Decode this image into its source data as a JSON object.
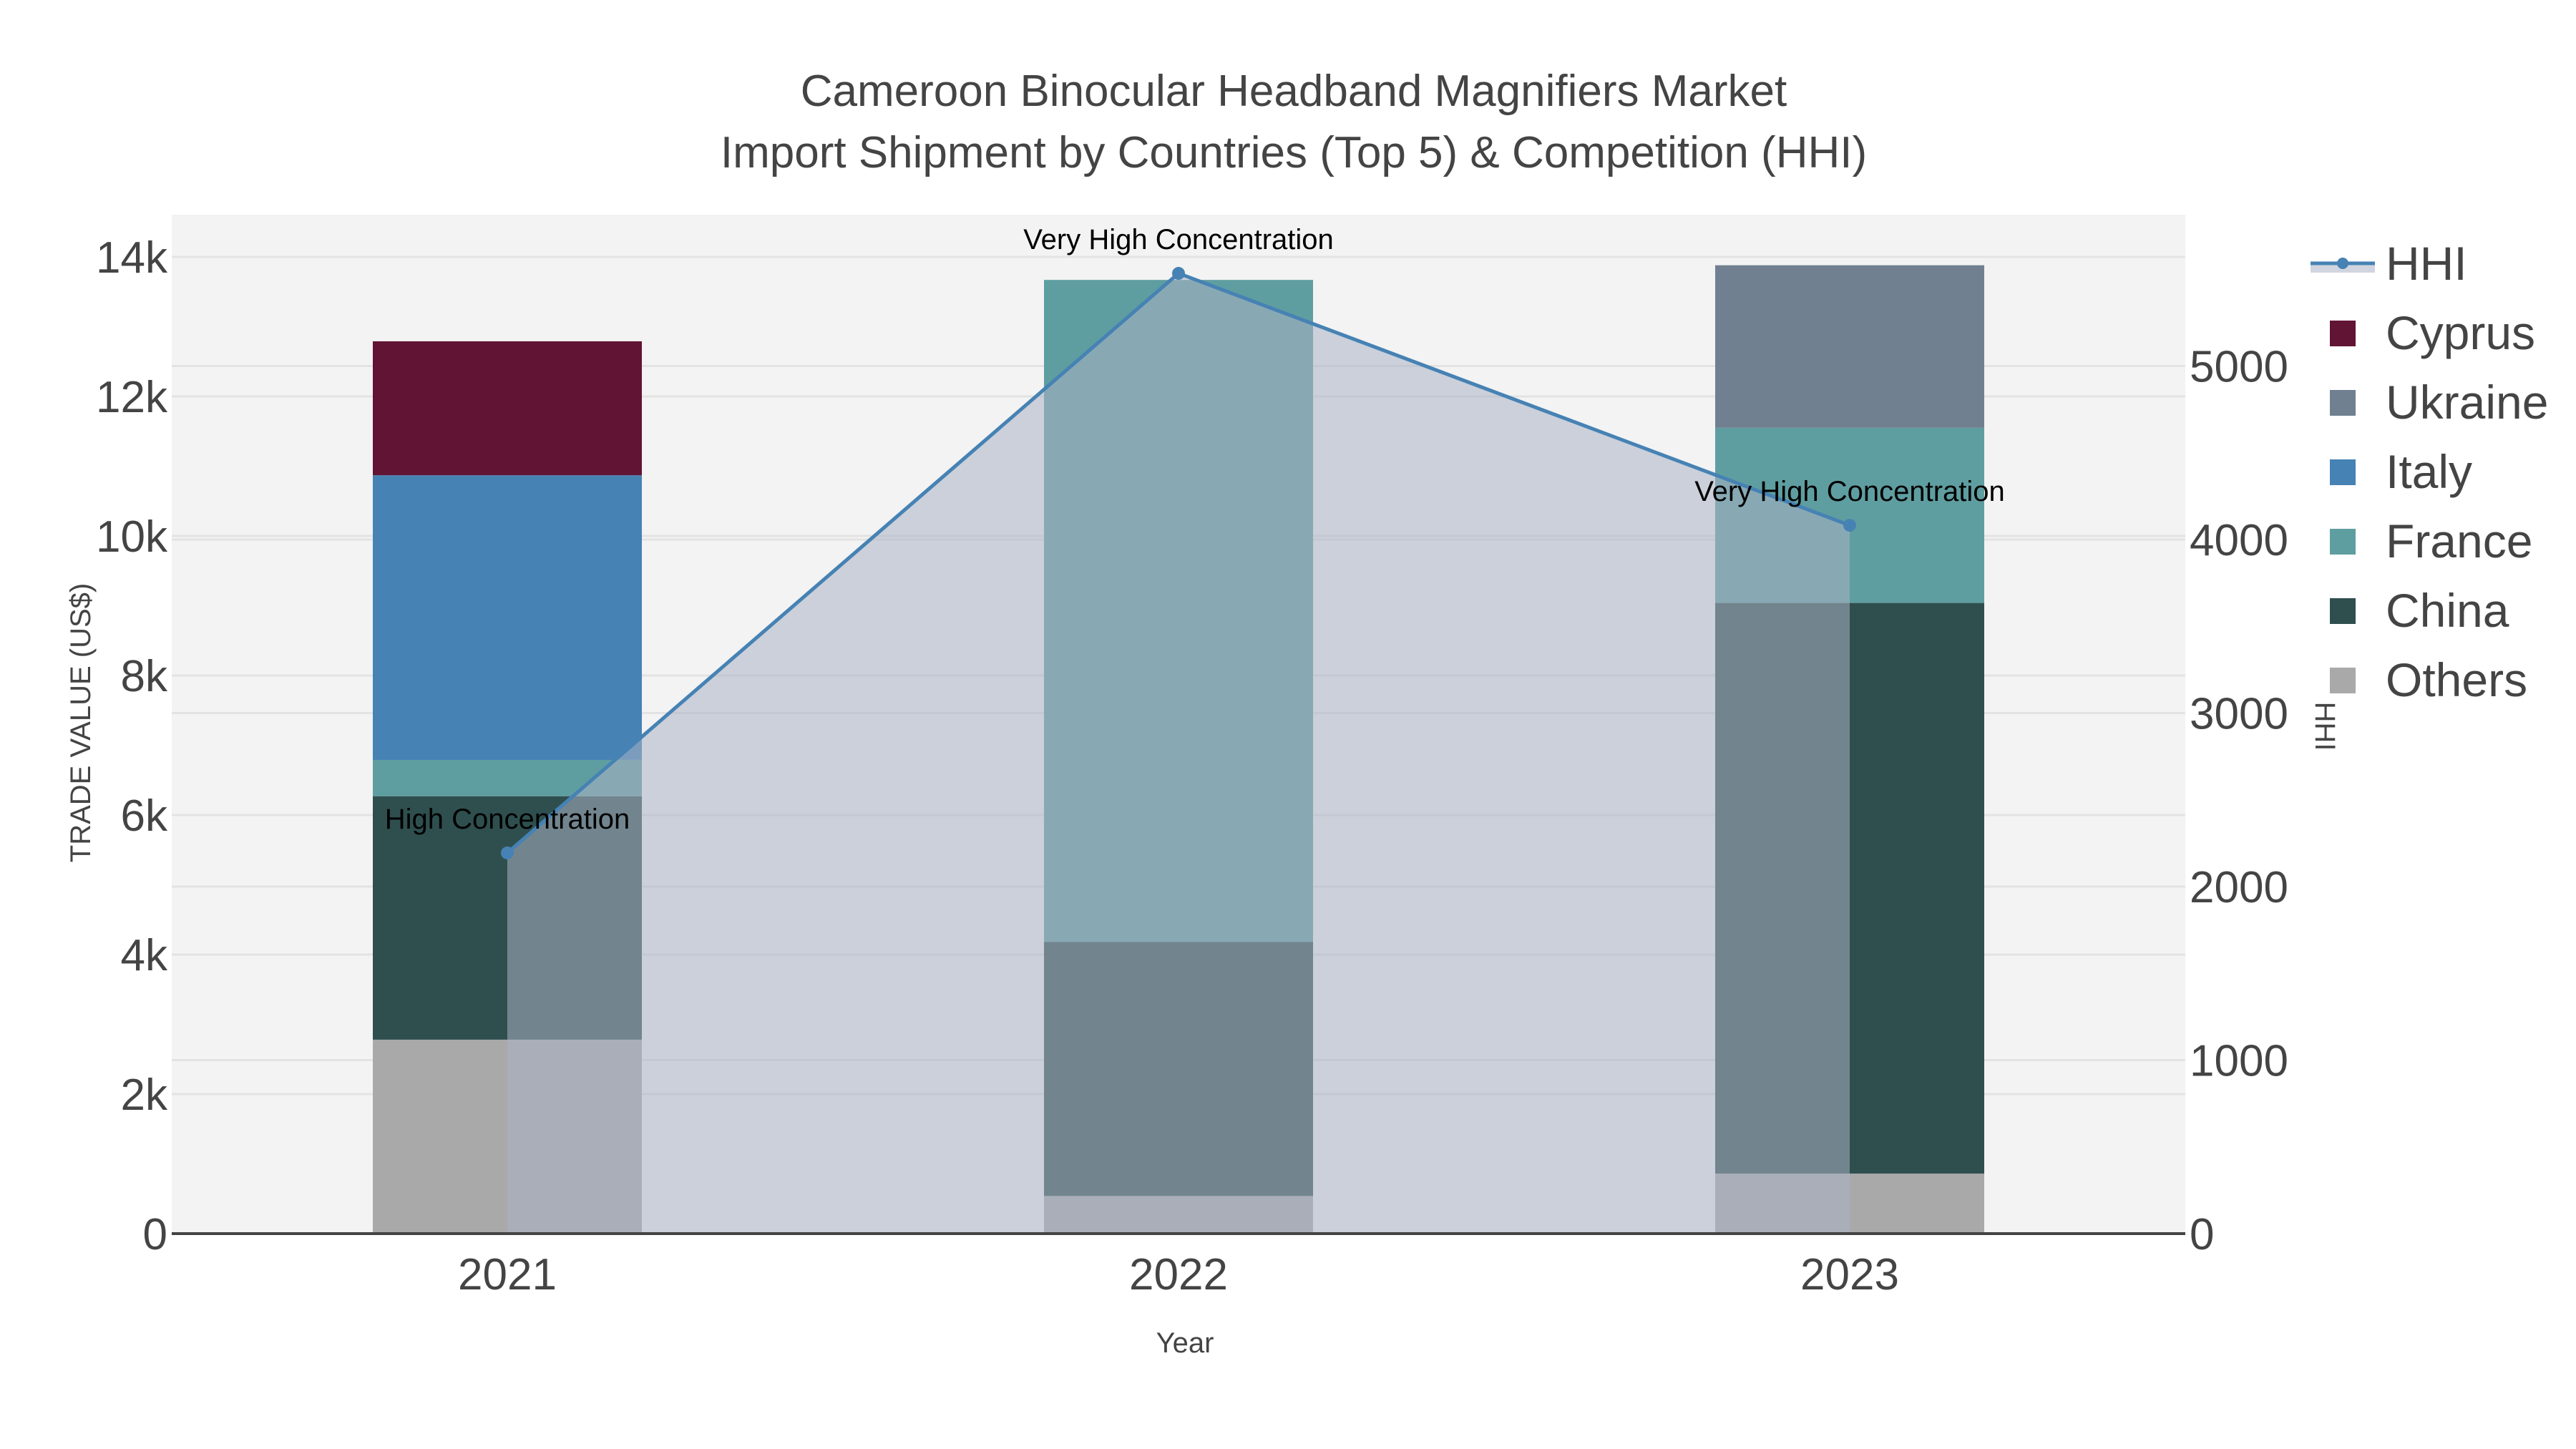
{
  "title": {
    "line1": "Cameroon Binocular Headband Magnifiers Market",
    "line2": "Import Shipment by Countries (Top 5) & Competition (HHI)"
  },
  "colors": {
    "plot_bg": "#f3f3f3",
    "grid": "#e3e3e3",
    "axis_line": "#444444",
    "hhi_line": "#4682b4",
    "hhi_fill": "rgba(169,179,196,0.55)"
  },
  "chart_data": {
    "type": "bar",
    "stacked": true,
    "title": "Cameroon Binocular Headband Magnifiers Market — Import Shipment by Countries (Top 5) & Competition (HHI)",
    "xlabel": "Year",
    "ylabel": "TRADE VALUE (US$)",
    "y2label": "HHI",
    "categories": [
      "2021",
      "2022",
      "2023"
    ],
    "ylim": [
      0,
      14600
    ],
    "y2lim": [
      0,
      5870
    ],
    "yticks": [
      0,
      2000,
      4000,
      6000,
      8000,
      10000,
      12000,
      14000
    ],
    "ytick_labels": [
      "0",
      "2k",
      "4k",
      "6k",
      "8k",
      "10k",
      "12k",
      "14k"
    ],
    "y2ticks": [
      0,
      1000,
      2000,
      3000,
      4000,
      5000
    ],
    "y2tick_labels": [
      "0",
      "1000",
      "2000",
      "3000",
      "4000",
      "5000"
    ],
    "grid": true,
    "legend_position": "right",
    "series": [
      {
        "name": "Others",
        "color": "#a9a9a9",
        "values": [
          2780,
          540,
          860
        ]
      },
      {
        "name": "China",
        "color": "#2f4f4f",
        "values": [
          3490,
          3640,
          8180
        ]
      },
      {
        "name": "France",
        "color": "#5f9ea0",
        "values": [
          520,
          9490,
          2510
        ]
      },
      {
        "name": "Italy",
        "color": "#4682b4",
        "values": [
          4080,
          0,
          0
        ]
      },
      {
        "name": "Ukraine",
        "color": "#708090",
        "values": [
          0,
          0,
          2330
        ]
      },
      {
        "name": "Cyprus",
        "color": "#611434",
        "values": [
          1920,
          0,
          0
        ]
      }
    ],
    "line_series": {
      "name": "HHI",
      "axis": "y2",
      "color": "#4682b4",
      "fill": "tozeroy",
      "values": [
        2194,
        5534,
        4082
      ],
      "annotations": [
        "High Concentration",
        "Very High Concentration",
        "Very High Concentration"
      ]
    },
    "totals": [
      12790,
      13670,
      13880
    ]
  },
  "legend": {
    "items": [
      {
        "label": "HHI",
        "type": "line",
        "color": "#4682b4"
      },
      {
        "label": "Cyprus",
        "type": "box",
        "color": "#611434"
      },
      {
        "label": "Ukraine",
        "type": "box",
        "color": "#708090"
      },
      {
        "label": "Italy",
        "type": "box",
        "color": "#4682b4"
      },
      {
        "label": "France",
        "type": "box",
        "color": "#5f9ea0"
      },
      {
        "label": "China",
        "type": "box",
        "color": "#2f4f4f"
      },
      {
        "label": "Others",
        "type": "box",
        "color": "#a9a9a9"
      }
    ]
  }
}
